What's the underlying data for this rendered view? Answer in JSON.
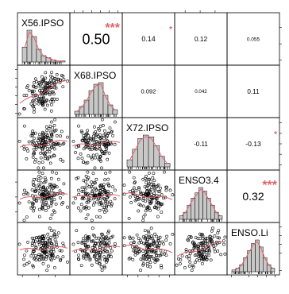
{
  "chart_data": {
    "type": "scatter",
    "title": "",
    "variables": [
      "X56.IPSO",
      "X68.IPSO",
      "X72.IPSO",
      "ENSO3.4",
      "ENSO.Li"
    ],
    "axis_ticks": {
      "X56.IPSO": [
        "0.5",
        "1.5",
        "2.5"
      ],
      "X68.IPSO": [
        "1",
        "2",
        "3",
        "4",
        "5",
        "6"
      ],
      "X72.IPSO": [
        "0",
        "1",
        "2",
        "3",
        "4"
      ],
      "ENSO3.4": [
        "-1.0",
        "0.0",
        "1.0"
      ],
      "ENSO.Li": [
        "-3",
        "-1",
        "0",
        "1",
        "2"
      ]
    },
    "ranges": {
      "X56.IPSO": [
        0.2,
        3.4
      ],
      "X68.IPSO": [
        0.5,
        6.5
      ],
      "X72.IPSO": [
        -0.5,
        4.5
      ],
      "ENSO3.4": [
        -1.7,
        1.8
      ],
      "ENSO.Li": [
        -3.5,
        2.5
      ]
    },
    "correlations": [
      {
        "row": 0,
        "col": 1,
        "value": "0.50",
        "stars": "***"
      },
      {
        "row": 0,
        "col": 2,
        "value": "0.14",
        "stars": "*"
      },
      {
        "row": 0,
        "col": 3,
        "value": "0.12",
        "stars": ""
      },
      {
        "row": 0,
        "col": 4,
        "value": "0.055",
        "stars": ""
      },
      {
        "row": 1,
        "col": 2,
        "value": "0.092",
        "stars": ""
      },
      {
        "row": 1,
        "col": 3,
        "value": "0.042",
        "stars": ""
      },
      {
        "row": 1,
        "col": 4,
        "value": "0.11",
        "stars": ""
      },
      {
        "row": 2,
        "col": 3,
        "value": "-0.11",
        "stars": ""
      },
      {
        "row": 2,
        "col": 4,
        "value": "-0.13",
        "stars": "*"
      },
      {
        "row": 3,
        "col": 4,
        "value": "0.32",
        "stars": "***"
      }
    ],
    "histograms": {
      "X56.IPSO": [
        14,
        30,
        24,
        12,
        6,
        4,
        2,
        1,
        1
      ],
      "X68.IPSO": [
        2,
        5,
        9,
        15,
        19,
        20,
        12,
        6,
        3
      ],
      "X72.IPSO": [
        4,
        10,
        16,
        18,
        17,
        12,
        6,
        2
      ],
      "ENSO3.4": [
        2,
        4,
        8,
        12,
        15,
        18,
        16,
        12,
        8,
        4,
        2
      ],
      "ENSO.Li": [
        1,
        2,
        4,
        8,
        12,
        16,
        18,
        14,
        8,
        4,
        2
      ]
    },
    "grid": false,
    "legend": "none",
    "colors": {
      "points": "#000000",
      "density": "#e0626a",
      "smooth": "#e0626a",
      "bars": "#c8c8c8",
      "stars": "#e0626a"
    }
  }
}
